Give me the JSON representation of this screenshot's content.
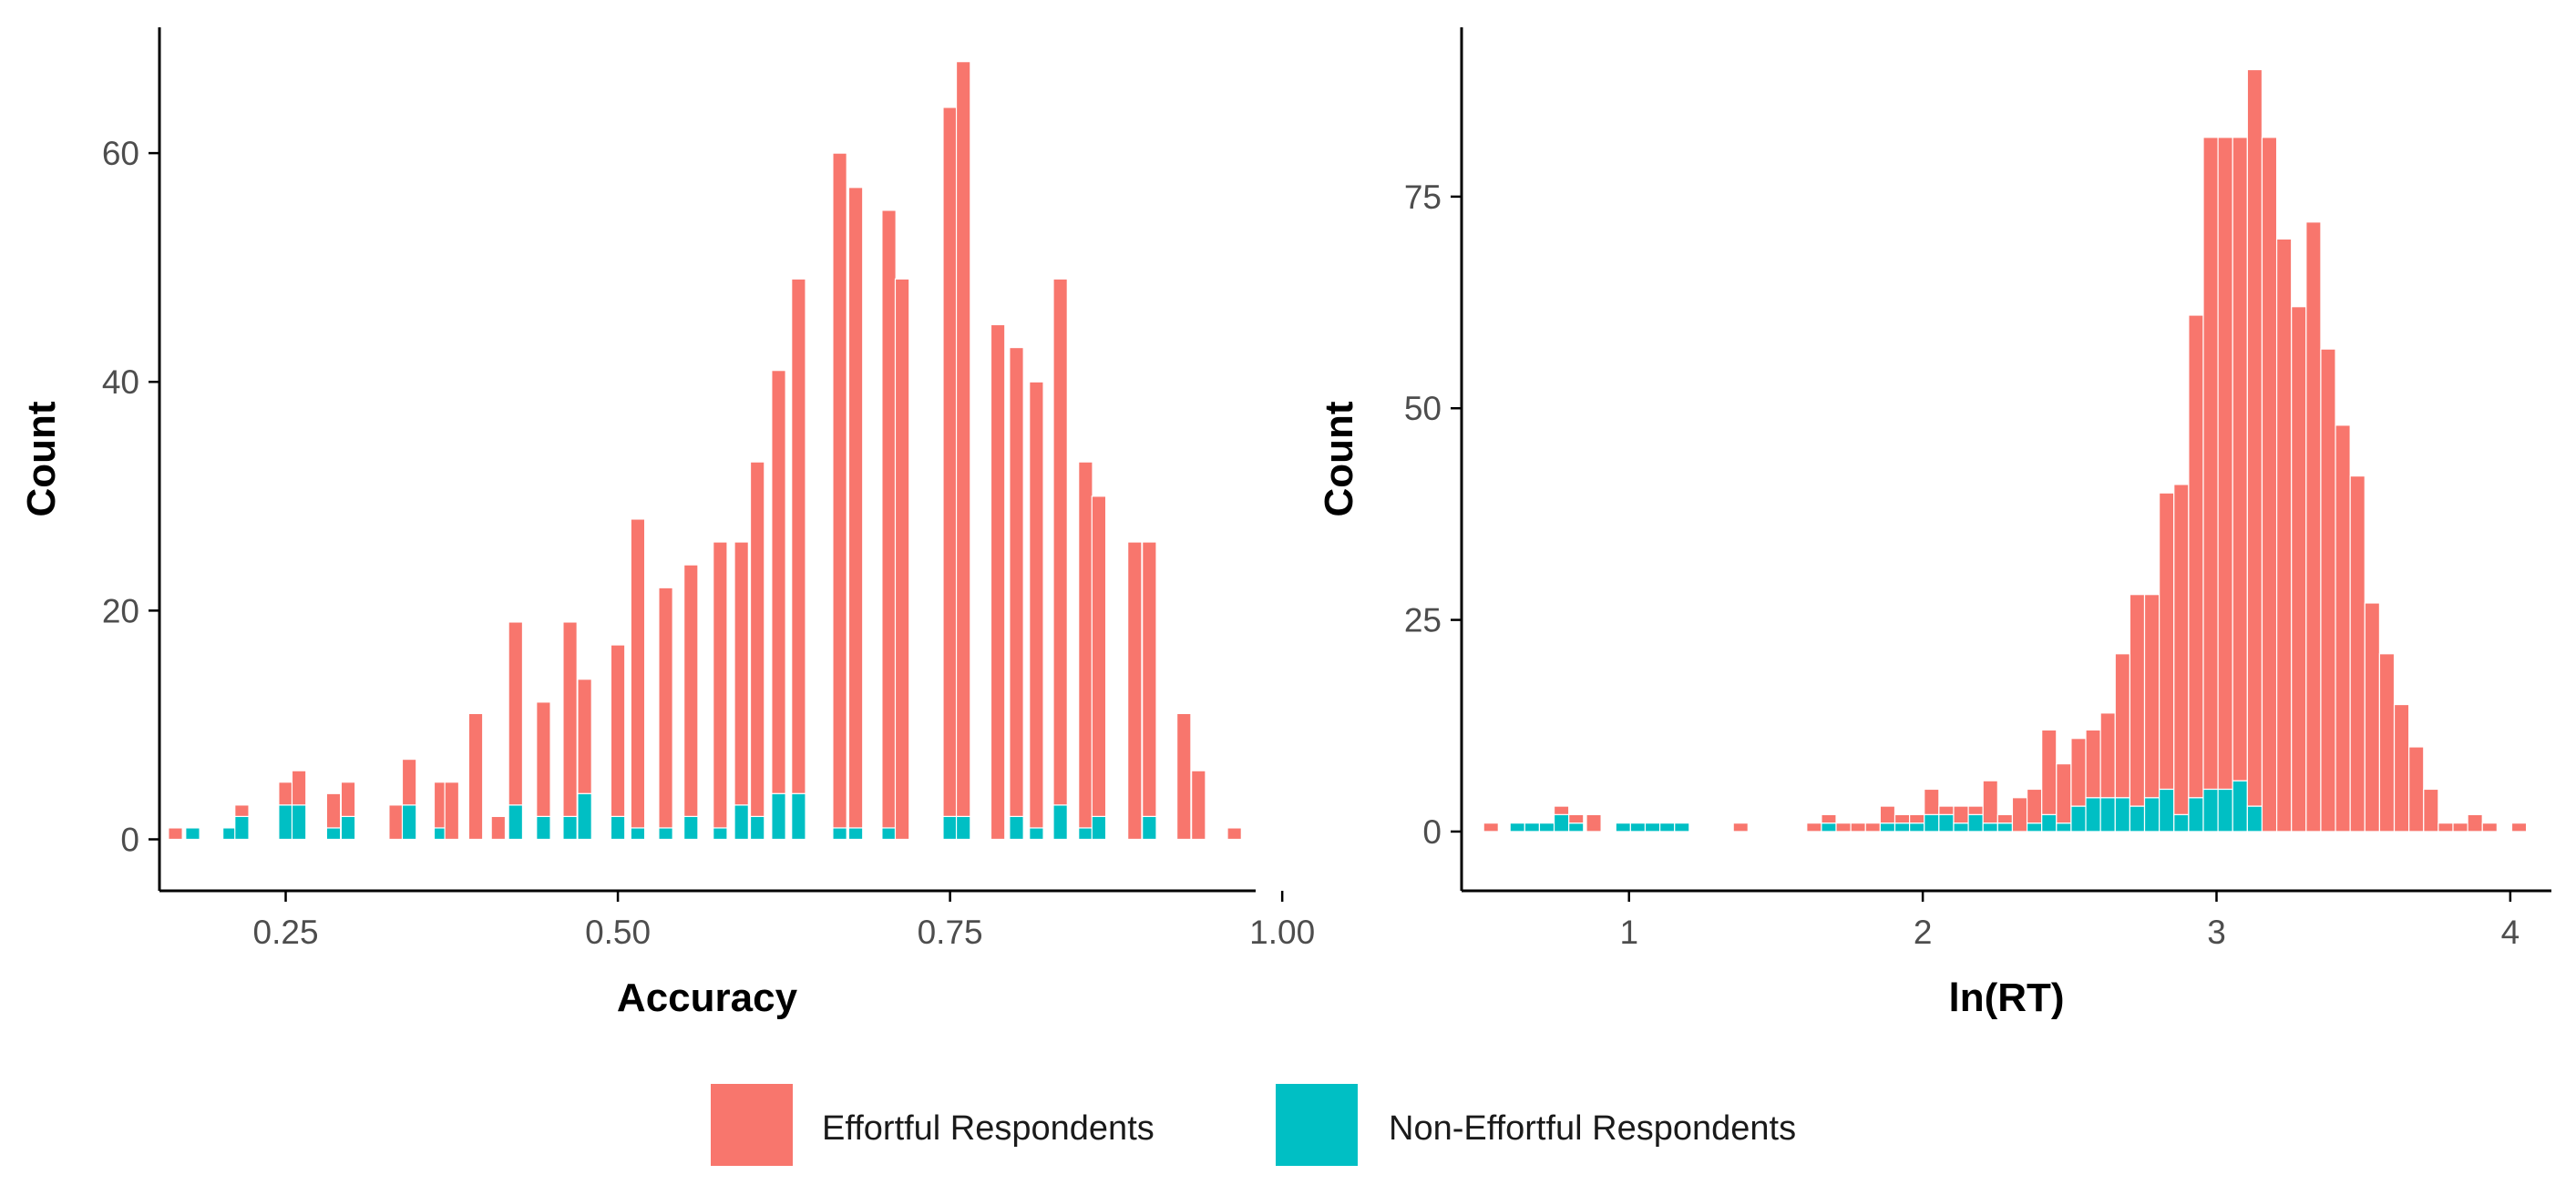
{
  "colors": {
    "effortful": "#F8766D",
    "non_effortful": "#00BFC4",
    "axis": "#000000",
    "tick_label": "#4d4d4d",
    "background": "#ffffff"
  },
  "legend": {
    "items": [
      {
        "label": "Effortful Respondents",
        "color": "#F8766D"
      },
      {
        "label": "Non-Effortful Respondents",
        "color": "#00BFC4"
      }
    ]
  },
  "chart_data": [
    {
      "type": "bar",
      "stacked": true,
      "xlabel": "Accuracy",
      "ylabel": "Count",
      "xlim": [
        0.155,
        0.98
      ],
      "ylim": [
        -4.5,
        71
      ],
      "xticks": [
        0.25,
        0.5,
        0.75,
        1.0
      ],
      "xtick_labels": [
        "0.25",
        "0.50",
        "0.75",
        "1.00"
      ],
      "yticks": [
        0,
        20,
        40,
        60
      ],
      "ytick_labels": [
        "0",
        "20",
        "40",
        "60"
      ],
      "grid": false,
      "bar_width": 0.0105,
      "x": [
        0.167,
        0.18,
        0.208,
        0.217,
        0.25,
        0.26,
        0.286,
        0.297,
        0.333,
        0.343,
        0.367,
        0.375,
        0.393,
        0.41,
        0.423,
        0.444,
        0.464,
        0.475,
        0.5,
        0.515,
        0.536,
        0.555,
        0.577,
        0.593,
        0.605,
        0.621,
        0.636,
        0.667,
        0.679,
        0.704,
        0.714,
        0.75,
        0.76,
        0.786,
        0.8,
        0.815,
        0.833,
        0.852,
        0.862,
        0.889,
        0.9,
        0.926,
        0.937,
        0.964
      ],
      "series": [
        {
          "name": "Non-Effortful Respondents",
          "values": [
            0,
            1,
            1,
            2,
            3,
            3,
            1,
            2,
            0,
            3,
            1,
            0,
            0,
            0,
            3,
            2,
            2,
            4,
            2,
            1,
            1,
            2,
            1,
            3,
            2,
            4,
            4,
            1,
            1,
            1,
            0,
            2,
            2,
            0,
            2,
            1,
            3,
            1,
            2,
            0,
            2,
            0,
            0,
            0
          ]
        },
        {
          "name": "Effortful Respondents",
          "values": [
            1,
            0,
            0,
            1,
            2,
            3,
            3,
            3,
            3,
            4,
            4,
            5,
            11,
            2,
            16,
            10,
            17,
            10,
            15,
            27,
            21,
            22,
            25,
            23,
            31,
            37,
            45,
            59,
            56,
            54,
            49,
            62,
            66,
            45,
            41,
            39,
            46,
            32,
            28,
            26,
            24,
            11,
            6,
            1
          ]
        }
      ]
    },
    {
      "type": "bar",
      "stacked": true,
      "xlabel": "ln(RT)",
      "ylabel": "Count",
      "xlim": [
        0.43,
        4.14
      ],
      "ylim": [
        -7,
        95
      ],
      "xticks": [
        1,
        2,
        3,
        4
      ],
      "xtick_labels": [
        "1",
        "2",
        "3",
        "4"
      ],
      "yticks": [
        0,
        25,
        50,
        75
      ],
      "ytick_labels": [
        "0",
        "25",
        "50",
        "75"
      ],
      "grid": false,
      "bar_width": 0.05,
      "x": [
        0.53,
        0.62,
        0.67,
        0.72,
        0.77,
        0.82,
        0.88,
        0.98,
        1.03,
        1.08,
        1.13,
        1.18,
        1.38,
        1.63,
        1.68,
        1.73,
        1.78,
        1.83,
        1.88,
        1.93,
        1.98,
        2.03,
        2.08,
        2.13,
        2.18,
        2.23,
        2.28,
        2.33,
        2.38,
        2.43,
        2.48,
        2.53,
        2.58,
        2.63,
        2.68,
        2.73,
        2.78,
        2.83,
        2.88,
        2.93,
        2.98,
        3.03,
        3.08,
        3.13,
        3.18,
        3.23,
        3.28,
        3.33,
        3.38,
        3.43,
        3.48,
        3.53,
        3.58,
        3.63,
        3.68,
        3.73,
        3.78,
        3.83,
        3.88,
        3.93,
        4.03
      ],
      "series": [
        {
          "name": "Non-Effortful Respondents",
          "values": [
            0,
            1,
            1,
            1,
            2,
            1,
            0,
            1,
            1,
            1,
            1,
            1,
            0,
            0,
            1,
            0,
            0,
            0,
            1,
            1,
            1,
            2,
            2,
            1,
            2,
            1,
            1,
            0,
            1,
            2,
            1,
            3,
            4,
            4,
            4,
            3,
            4,
            5,
            2,
            4,
            5,
            5,
            6,
            3,
            0,
            0,
            0,
            0,
            0,
            0,
            0,
            0,
            0,
            0,
            0,
            0,
            0,
            0,
            0,
            0,
            0
          ]
        },
        {
          "name": "Effortful Respondents",
          "values": [
            1,
            0,
            0,
            0,
            1,
            1,
            2,
            0,
            0,
            0,
            0,
            0,
            1,
            1,
            1,
            1,
            1,
            1,
            2,
            1,
            1,
            3,
            1,
            2,
            1,
            5,
            1,
            4,
            4,
            10,
            7,
            8,
            8,
            10,
            17,
            25,
            24,
            35,
            39,
            57,
            77,
            77,
            76,
            87,
            82,
            70,
            62,
            72,
            57,
            48,
            42,
            27,
            21,
            15,
            10,
            5,
            1,
            1,
            2,
            1,
            1
          ]
        }
      ]
    }
  ]
}
